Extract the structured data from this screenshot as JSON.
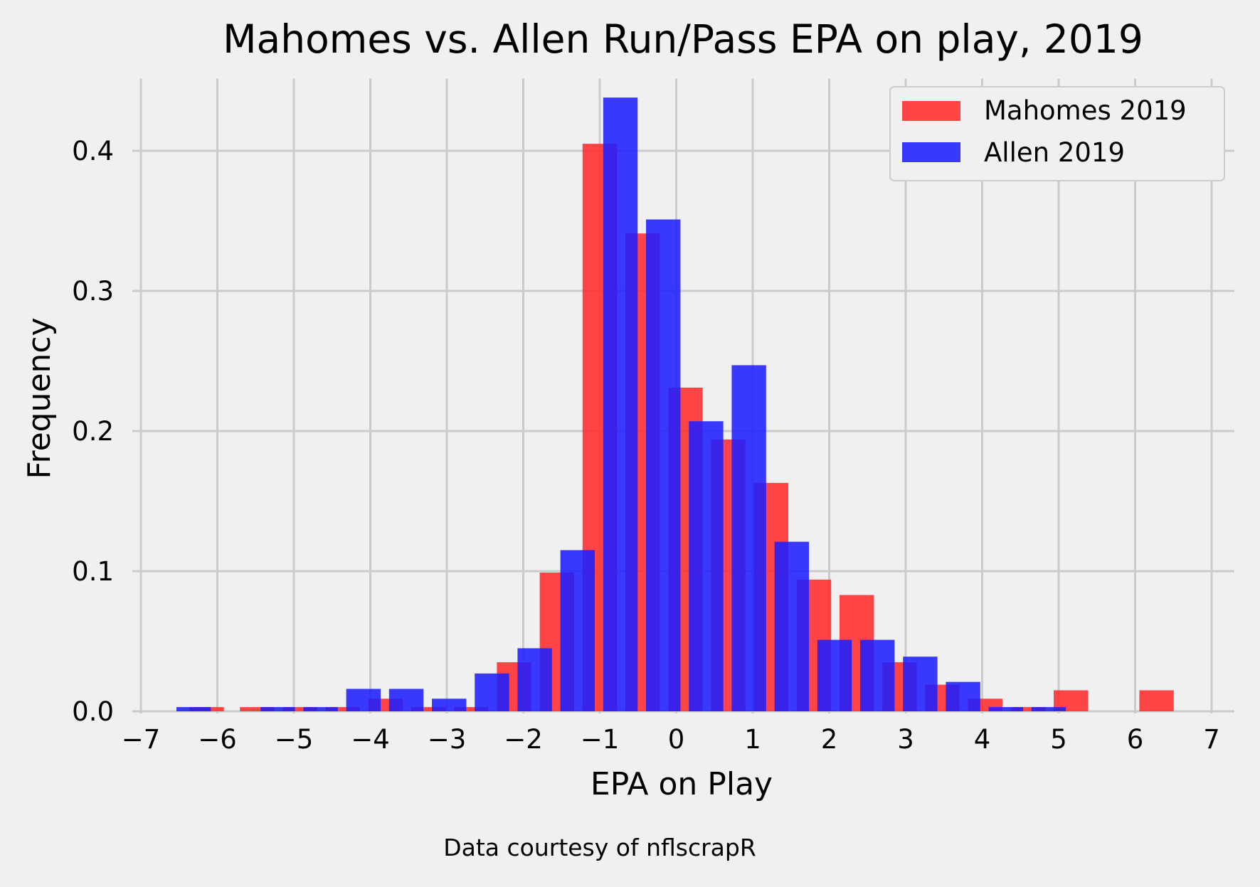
{
  "chart_data": {
    "type": "bar",
    "title": "Mahomes vs. Allen Run/Pass EPA on play, 2019",
    "xlabel": "EPA on Play",
    "ylabel": "Frequency",
    "footnote": "Data courtesy of nflscrapR",
    "xlim": [
      -7,
      7
    ],
    "ylim": [
      0,
      0.45
    ],
    "xticks": [
      -7,
      -6,
      -5,
      -4,
      -3,
      -2,
      -1,
      0,
      1,
      2,
      3,
      4,
      5,
      6,
      7
    ],
    "xtick_labels": [
      "−7",
      "−6",
      "−5",
      "−4",
      "−3",
      "−2",
      "−1",
      "0",
      "1",
      "2",
      "3",
      "4",
      "5",
      "6",
      "7"
    ],
    "yticks": [
      0.0,
      0.1,
      0.2,
      0.3,
      0.4
    ],
    "ytick_labels": [
      "0.0",
      "0.1",
      "0.2",
      "0.3",
      "0.4"
    ],
    "grid": true,
    "legend_position": "top-right",
    "bin_width": 0.45,
    "series": [
      {
        "name": "Mahomes 2019",
        "color": "#ff2b2b",
        "x": [
          -6.14,
          -5.48,
          -4.92,
          -4.36,
          -3.8,
          -3.24,
          -2.68,
          -2.12,
          -1.56,
          -1.0,
          -0.44,
          0.12,
          0.68,
          1.24,
          1.8,
          2.36,
          2.92,
          3.48,
          4.04,
          4.6,
          5.16,
          6.28
        ],
        "values": [
          0.003,
          0.003,
          0.003,
          0.003,
          0.009,
          0.003,
          0.003,
          0.035,
          0.099,
          0.405,
          0.341,
          0.231,
          0.194,
          0.163,
          0.094,
          0.083,
          0.035,
          0.019,
          0.009,
          0.003,
          0.015,
          0.015
        ]
      },
      {
        "name": "Allen 2019",
        "color": "#1f1fff",
        "x": [
          -6.31,
          -5.21,
          -4.65,
          -4.09,
          -3.53,
          -2.97,
          -2.41,
          -1.85,
          -1.29,
          -0.73,
          -0.17,
          0.39,
          0.95,
          1.51,
          2.07,
          2.63,
          3.19,
          3.75,
          4.31,
          4.87
        ],
        "values": [
          0.003,
          0.003,
          0.003,
          0.016,
          0.016,
          0.009,
          0.027,
          0.045,
          0.115,
          0.438,
          0.351,
          0.207,
          0.247,
          0.121,
          0.051,
          0.051,
          0.039,
          0.021,
          0.003,
          0.003
        ]
      }
    ]
  }
}
